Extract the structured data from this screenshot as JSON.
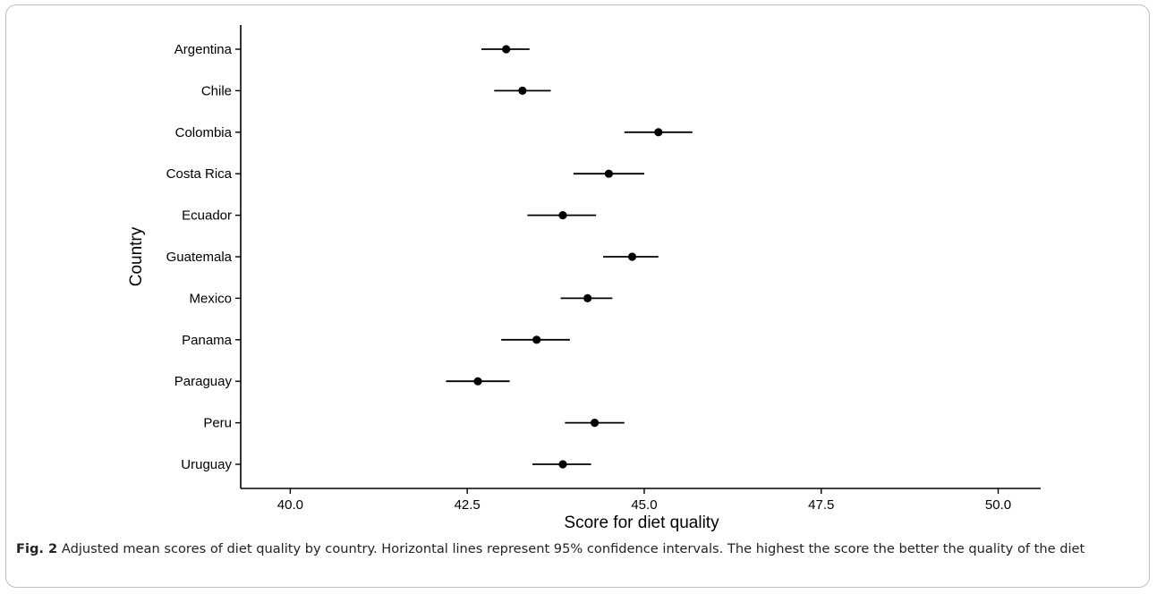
{
  "chart_data": {
    "type": "forest",
    "xlabel": "Score for diet quality",
    "ylabel": "Country",
    "xlim": [
      39.3,
      50.6
    ],
    "xticks": [
      "40.0",
      "42.5",
      "45.0",
      "47.5",
      "50.0"
    ],
    "xtick_values": [
      40.0,
      42.5,
      45.0,
      47.5,
      50.0
    ],
    "categories": [
      "Argentina",
      "Chile",
      "Colombia",
      "Costa Rica",
      "Ecuador",
      "Guatemala",
      "Mexico",
      "Panama",
      "Paraguay",
      "Peru",
      "Uruguay"
    ],
    "estimates": [
      43.05,
      43.28,
      45.2,
      44.5,
      43.85,
      44.83,
      44.2,
      43.48,
      42.65,
      44.3,
      43.85
    ],
    "ci_low": [
      42.7,
      42.88,
      44.72,
      44.0,
      43.35,
      44.42,
      43.82,
      42.98,
      42.2,
      43.88,
      43.42
    ],
    "ci_high": [
      43.38,
      43.68,
      45.68,
      45.0,
      44.32,
      45.2,
      44.55,
      43.95,
      43.1,
      44.72,
      44.25
    ],
    "grid": false
  },
  "caption": {
    "label": "Fig. 2",
    "text": "  Adjusted mean scores of diet quality by country. Horizontal lines represent 95% confidence intervals. The highest the score the better the quality of the diet"
  }
}
